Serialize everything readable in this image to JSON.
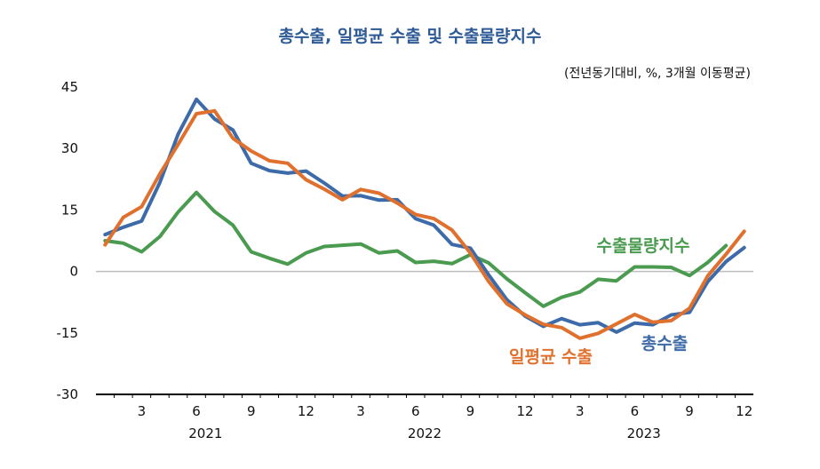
{
  "chart_data": {
    "type": "line",
    "title": "총수출, 일평균 수출 및 수출물량지수",
    "subtitle": "(전년동기대비, %, 3개월 이동평균)",
    "xlabel": "",
    "ylabel": "",
    "ylim": [
      -30,
      45
    ],
    "yticks": [
      45,
      30,
      15,
      0,
      -15,
      -30
    ],
    "xtick_labels": [
      "3",
      "6",
      "9",
      "12",
      "3",
      "6",
      "9",
      "12",
      "3",
      "6",
      "9",
      "12"
    ],
    "years": [
      "2021",
      "2022",
      "2023"
    ],
    "grid": false,
    "zero_line": true,
    "x": [
      "2021-01",
      "2021-02",
      "2021-03",
      "2021-04",
      "2021-05",
      "2021-06",
      "2021-07",
      "2021-08",
      "2021-09",
      "2021-10",
      "2021-11",
      "2021-12",
      "2022-01",
      "2022-02",
      "2022-03",
      "2022-04",
      "2022-05",
      "2022-06",
      "2022-07",
      "2022-08",
      "2022-09",
      "2022-10",
      "2022-11",
      "2022-12",
      "2023-01",
      "2023-02",
      "2023-03",
      "2023-04",
      "2023-05",
      "2023-06",
      "2023-07",
      "2023-08",
      "2023-09",
      "2023-10",
      "2023-11",
      "2023-12"
    ],
    "series": [
      {
        "name": "총수출",
        "color": "#3d6aa8",
        "values": [
          9.0,
          10.8,
          12.3,
          21.7,
          33.5,
          42.0,
          37.2,
          34.5,
          26.4,
          24.6,
          24.0,
          24.5,
          21.6,
          18.4,
          18.5,
          17.4,
          17.5,
          12.9,
          11.3,
          6.6,
          5.7,
          -0.8,
          -6.9,
          -10.9,
          -13.4,
          -11.5,
          -13.0,
          -12.5,
          -14.8,
          -12.6,
          -13.0,
          -10.6,
          -10.0,
          -2.5,
          2.4,
          5.8
        ]
      },
      {
        "name": "일평균 수출",
        "color": "#e0702e",
        "values": [
          6.5,
          13.2,
          15.8,
          23.8,
          31.0,
          38.5,
          39.2,
          32.5,
          29.4,
          27.0,
          26.4,
          22.4,
          20.1,
          17.5,
          20.0,
          19.1,
          16.7,
          13.9,
          12.9,
          10.1,
          4.5,
          -2.4,
          -7.9,
          -10.6,
          -12.9,
          -13.7,
          -16.3,
          -15.1,
          -12.8,
          -10.5,
          -12.4,
          -12.0,
          -9.0,
          -1.1,
          4.2,
          9.8
        ]
      },
      {
        "name": "수출물량지수",
        "color": "#4a9a4f",
        "values": [
          7.5,
          6.9,
          4.8,
          8.5,
          14.5,
          19.3,
          14.6,
          11.3,
          4.8,
          3.2,
          1.8,
          4.5,
          6.1,
          6.4,
          6.7,
          4.5,
          5.0,
          2.2,
          2.5,
          1.9,
          4.1,
          2.1,
          -1.8,
          -5.2,
          -8.5,
          -6.3,
          -5.0,
          -1.9,
          -2.3,
          1.1,
          1.1,
          1.0,
          -1.0,
          2.2,
          6.3,
          null
        ]
      }
    ],
    "annotations": [
      {
        "series": "수출물량지수",
        "text": "수출물량지수"
      },
      {
        "series": "일평균 수출",
        "text": "일평균 수출"
      },
      {
        "series": "총수출",
        "text": "총수출"
      }
    ]
  }
}
